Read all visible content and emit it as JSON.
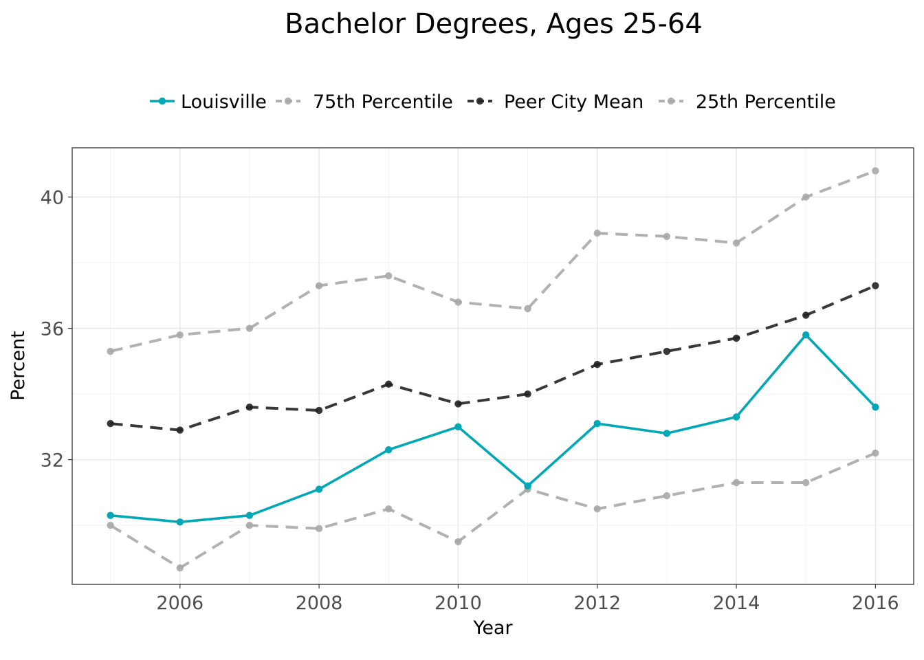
{
  "chart_data": {
    "type": "line",
    "title": "Bachelor Degrees, Ages 25-64",
    "xlabel": "Year",
    "ylabel": "Percent",
    "x": [
      2005,
      2006,
      2007,
      2008,
      2009,
      2010,
      2011,
      2012,
      2013,
      2014,
      2015,
      2016
    ],
    "xlim": [
      2004.45,
      2016.55
    ],
    "ylim": [
      28.2,
      41.5
    ],
    "x_ticks": [
      2006,
      2008,
      2010,
      2012,
      2014,
      2016
    ],
    "y_ticks": [
      32,
      36,
      40
    ],
    "grid": true,
    "legend_position": "top",
    "series": [
      {
        "name": "Louisville",
        "color": "#00a7b5",
        "style": "solid",
        "values": [
          30.3,
          30.1,
          30.3,
          31.1,
          32.3,
          33.0,
          31.2,
          33.1,
          32.8,
          33.3,
          35.8,
          33.6
        ]
      },
      {
        "name": "75th Percentile",
        "color": "#a9a9a9",
        "style": "dashed",
        "values": [
          35.3,
          35.8,
          36.0,
          37.3,
          37.6,
          36.8,
          36.6,
          38.9,
          38.8,
          38.6,
          40.0,
          40.8
        ]
      },
      {
        "name": "Peer City Mean",
        "color": "#222222",
        "style": "dashed",
        "values": [
          33.1,
          32.9,
          33.6,
          33.5,
          34.3,
          33.7,
          34.0,
          34.9,
          35.3,
          35.7,
          36.4,
          37.3
        ]
      },
      {
        "name": "25th Percentile",
        "color": "#a9a9a9",
        "style": "dashed",
        "values": [
          30.0,
          28.7,
          30.0,
          29.9,
          30.5,
          29.5,
          31.1,
          30.5,
          30.9,
          31.3,
          31.3,
          32.2
        ]
      }
    ]
  }
}
